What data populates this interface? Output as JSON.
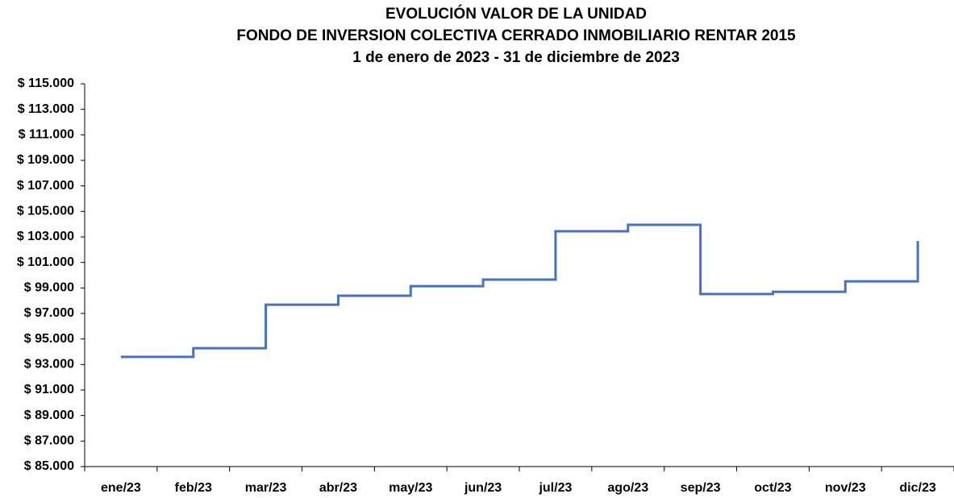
{
  "chart_data": {
    "type": "line",
    "step": "post",
    "title": [
      "EVOLUCIÓN VALOR DE LA UNIDAD",
      "FONDO DE INVERSION COLECTIVA CERRADO INMOBILIARIO RENTAR 2015",
      "1 de enero de 2023 - 31 de diciembre de 2023"
    ],
    "categories": [
      "ene/23",
      "feb/23",
      "mar/23",
      "abr/23",
      "may/23",
      "jun/23",
      "jul/23",
      "ago/23",
      "sep/23",
      "oct/23",
      "nov/23",
      "dic/23"
    ],
    "series": [
      {
        "color": "#4472c4",
        "values": [
          93600,
          94280,
          97690,
          98390,
          99140,
          99650,
          103440,
          103950,
          98520,
          98700,
          99520,
          102680
        ]
      }
    ],
    "ylim": [
      85000,
      115000
    ],
    "yticks": [
      {
        "value": 85000,
        "label": "$ 85.000"
      },
      {
        "value": 87000,
        "label": "$ 87.000"
      },
      {
        "value": 89000,
        "label": "$ 89.000"
      },
      {
        "value": 91000,
        "label": "$ 91.000"
      },
      {
        "value": 93000,
        "label": "$ 93.000"
      },
      {
        "value": 95000,
        "label": "$ 95.000"
      },
      {
        "value": 97000,
        "label": "$ 97.000"
      },
      {
        "value": 99000,
        "label": "$ 99.000"
      },
      {
        "value": 101000,
        "label": "$ 101.000"
      },
      {
        "value": 103000,
        "label": "$ 103.000"
      },
      {
        "value": 105000,
        "label": "$ 105.000"
      },
      {
        "value": 107000,
        "label": "$ 107.000"
      },
      {
        "value": 109000,
        "label": "$ 109.000"
      },
      {
        "value": 111000,
        "label": "$ 111.000"
      },
      {
        "value": 113000,
        "label": "$ 113.000"
      },
      {
        "value": 115000,
        "label": "$ 115.000"
      }
    ],
    "grid": false
  }
}
